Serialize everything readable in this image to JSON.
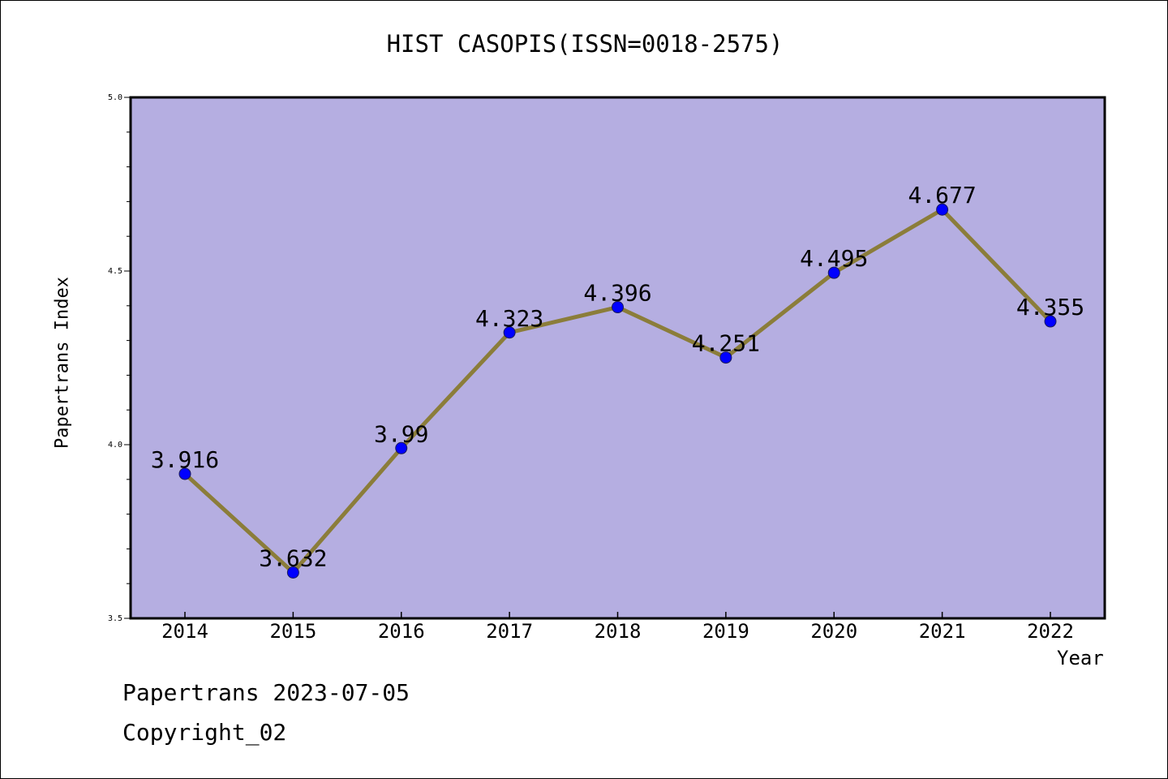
{
  "chart_data": {
    "type": "line",
    "title": "HIST CASOPIS(ISSN=0018-2575)",
    "xlabel": "Year",
    "ylabel": "Papertrans Index",
    "categories": [
      "2014",
      "2015",
      "2016",
      "2017",
      "2018",
      "2019",
      "2020",
      "2021",
      "2022"
    ],
    "series": [
      {
        "values": [
          3.916,
          3.632,
          3.99,
          4.323,
          4.396,
          4.251,
          4.495,
          4.677,
          4.355
        ],
        "data_labels": [
          "3.916",
          "3.632",
          "3.99",
          "4.323",
          "4.396",
          "4.251",
          "4.495",
          "4.677",
          "4.355"
        ]
      }
    ],
    "ylim": [
      3.5,
      5.0
    ],
    "y_ticks": [
      "3.5",
      "4.0",
      "4.5",
      "5.0"
    ],
    "grid": false,
    "colors": {
      "plot_background": "#b5aee1",
      "line": "#8b7d3a",
      "marker": "#0000ff"
    }
  },
  "footer": {
    "date_text": "Papertrans 2023-07-05",
    "copyright_text": "Copyright_02"
  }
}
